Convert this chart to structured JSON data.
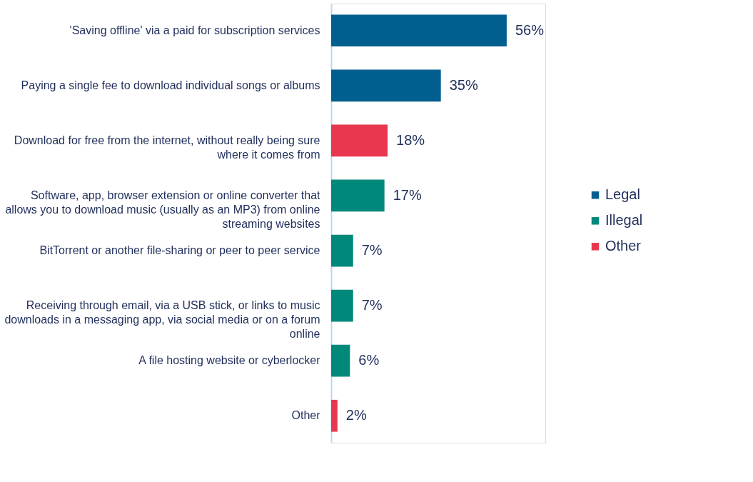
{
  "chart_data": {
    "type": "bar",
    "orientation": "horizontal",
    "legend": "right",
    "grid": false,
    "categories": [
      "'Saving offline' via a paid for subscription services",
      "Paying a single fee to download individual songs or albums",
      "Download for free from the internet, without really being sure where it comes from",
      "Software, app, browser extension or online converter that allows you to download music (usually as an MP3) from online streaming websites",
      "BitTorrent or another file-sharing or peer to peer service",
      "Receiving through email, via a USB stick, or links to music downloads in a messaging app, via social media or on a forum online",
      "A file hosting website or cyberlocker",
      "Other"
    ],
    "series": [
      {
        "name": "Legal",
        "color": "#005f8f",
        "values": [
          56,
          35,
          null,
          null,
          null,
          null,
          null,
          null
        ],
        "value_labels": [
          "56%",
          "35%",
          null,
          null,
          null,
          null,
          null,
          null
        ]
      },
      {
        "name": "Illegal",
        "color": "#00897b",
        "values": [
          null,
          null,
          null,
          17,
          7,
          7,
          6,
          null
        ],
        "value_labels": [
          null,
          null,
          null,
          "17%",
          "7%",
          "7%",
          "6%",
          null
        ]
      },
      {
        "name": "Other",
        "color": "#e8374f",
        "values": [
          null,
          null,
          18,
          null,
          null,
          null,
          null,
          2
        ],
        "value_labels": [
          null,
          null,
          "18%",
          null,
          null,
          null,
          null,
          "2%"
        ]
      }
    ]
  }
}
